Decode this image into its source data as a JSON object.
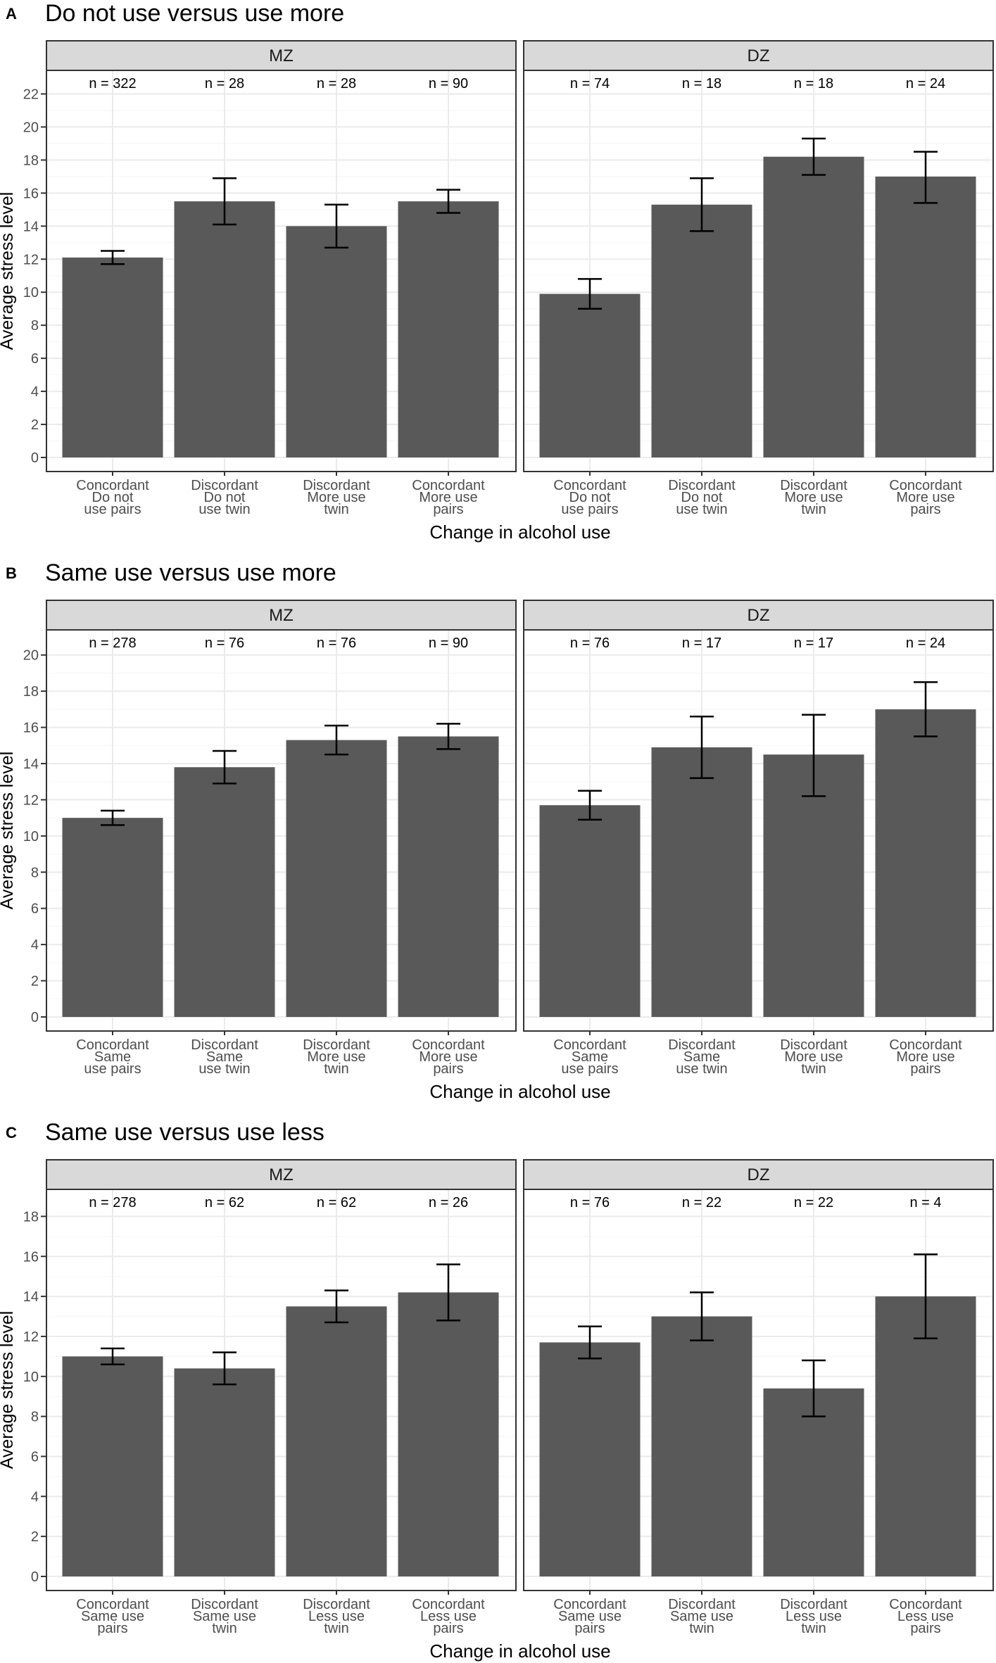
{
  "chart_data": [
    {
      "type": "bar",
      "panel_letter": "A",
      "title": "Do not use versus use more",
      "xlabel": "Change in alcohol use",
      "ylabel": "Average stress level",
      "ylim": [
        0,
        23
      ],
      "yticks": [
        0,
        2,
        4,
        6,
        8,
        10,
        12,
        14,
        16,
        18,
        20,
        22
      ],
      "facets": [
        {
          "strip": "MZ",
          "categories": [
            "Concordant\nDo not\nuse pairs",
            "Discordant\nDo not\nuse twin",
            "Discordant\nMore use\ntwin",
            "Concordant\nMore use\npairs"
          ],
          "n_labels": [
            "n = 322",
            "n = 28",
            "n = 28",
            "n = 90"
          ],
          "values": [
            12.1,
            15.5,
            14.0,
            15.5
          ],
          "err_low": [
            11.7,
            14.1,
            12.7,
            14.8
          ],
          "err_high": [
            12.5,
            16.9,
            15.3,
            16.2
          ]
        },
        {
          "strip": "DZ",
          "categories": [
            "Concordant\nDo not\nuse pairs",
            "Discordant\nDo not\nuse twin",
            "Discordant\nMore use\ntwin",
            "Concordant\nMore use\npairs"
          ],
          "n_labels": [
            "n = 74",
            "n = 18",
            "n = 18",
            "n = 24"
          ],
          "values": [
            9.9,
            15.3,
            18.2,
            17.0
          ],
          "err_low": [
            9.0,
            13.7,
            17.1,
            15.4
          ],
          "err_high": [
            10.8,
            16.9,
            19.3,
            18.5
          ]
        }
      ]
    },
    {
      "type": "bar",
      "panel_letter": "B",
      "title": "Same use versus use more",
      "xlabel": "Change in alcohol use",
      "ylabel": "Average stress level",
      "ylim": [
        0,
        21
      ],
      "yticks": [
        0,
        2,
        4,
        6,
        8,
        10,
        12,
        14,
        16,
        18,
        20
      ],
      "facets": [
        {
          "strip": "MZ",
          "categories": [
            "Concordant\nSame\nuse pairs",
            "Discordant\nSame\nuse twin",
            "Discordant\nMore use\ntwin",
            "Concordant\nMore use\npairs"
          ],
          "n_labels": [
            "n = 278",
            "n = 76",
            "n = 76",
            "n = 90"
          ],
          "values": [
            11.0,
            13.8,
            15.3,
            15.5
          ],
          "err_low": [
            10.6,
            12.9,
            14.5,
            14.8
          ],
          "err_high": [
            11.4,
            14.7,
            16.1,
            16.2
          ]
        },
        {
          "strip": "DZ",
          "categories": [
            "Concordant\nSame\nuse pairs",
            "Discordant\nSame\nuse twin",
            "Discordant\nMore use\ntwin",
            "Concordant\nMore use\npairs"
          ],
          "n_labels": [
            "n = 76",
            "n = 17",
            "n = 17",
            "n = 24"
          ],
          "values": [
            11.7,
            14.9,
            14.5,
            17.0
          ],
          "err_low": [
            10.9,
            13.2,
            12.2,
            15.5
          ],
          "err_high": [
            12.5,
            16.6,
            16.7,
            18.5
          ]
        }
      ]
    },
    {
      "type": "bar",
      "panel_letter": "C",
      "title": "Same use versus use less",
      "xlabel": "Change in alcohol use",
      "ylabel": "Average stress level",
      "ylim": [
        0,
        19
      ],
      "yticks": [
        0,
        2,
        4,
        6,
        8,
        10,
        12,
        14,
        16,
        18
      ],
      "facets": [
        {
          "strip": "MZ",
          "categories": [
            "Concordant\nSame use\npairs",
            "Discordant\nSame use\ntwin",
            "Discordant\nLess use\ntwin",
            "Concordant\nLess use\npairs"
          ],
          "n_labels": [
            "n = 278",
            "n = 62",
            "n = 62",
            "n = 26"
          ],
          "values": [
            11.0,
            10.4,
            13.5,
            14.2
          ],
          "err_low": [
            10.6,
            9.6,
            12.7,
            12.8
          ],
          "err_high": [
            11.4,
            11.2,
            14.3,
            15.6
          ]
        },
        {
          "strip": "DZ",
          "categories": [
            "Concordant\nSame use\npairs",
            "Discordant\nSame use\ntwin",
            "Discordant\nLess use\ntwin",
            "Concordant\nLess use\npairs"
          ],
          "n_labels": [
            "n = 76",
            "n = 22",
            "n = 22",
            "n = 4"
          ],
          "values": [
            11.7,
            13.0,
            9.4,
            14.0
          ],
          "err_low": [
            10.9,
            11.8,
            8.0,
            11.9
          ],
          "err_high": [
            12.5,
            14.2,
            10.8,
            16.1
          ]
        }
      ]
    }
  ],
  "colors": {
    "bar": "#595959",
    "strip_fill": "#d9d9d9",
    "grid_major": "#ebebeb",
    "grid_minor": "#f5f5f5",
    "border": "#333333",
    "text": "#000000",
    "axis_text": "#4d4d4d"
  }
}
